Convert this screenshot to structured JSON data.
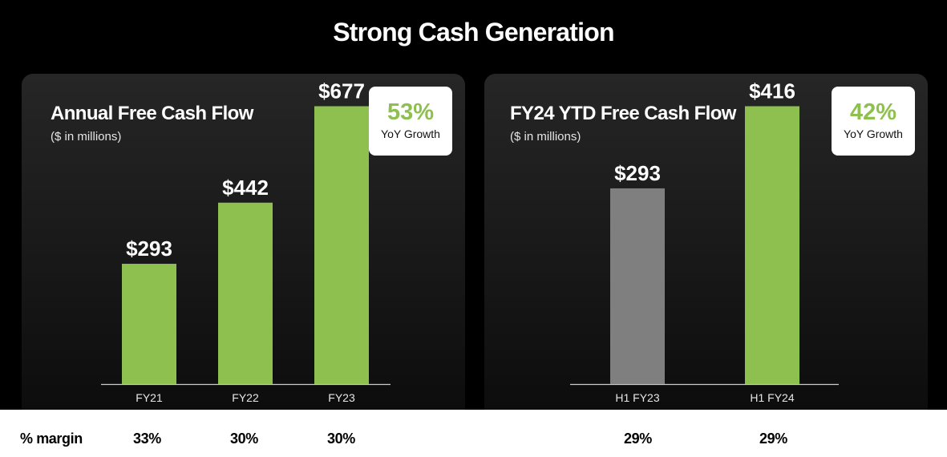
{
  "page_title": "Strong Cash Generation",
  "panels": [
    {
      "title": "Annual Free Cash Flow",
      "subtitle": "($ in millions)",
      "growth": {
        "value": "53%",
        "label": "YoY Growth"
      }
    },
    {
      "title": "FY24 YTD Free Cash Flow",
      "subtitle": "($ in millions)",
      "growth": {
        "value": "42%",
        "label": "YoY Growth"
      }
    }
  ],
  "margin": {
    "label": "% margin",
    "values": [
      "33%",
      "30%",
      "30%",
      "29%",
      "29%"
    ]
  },
  "colors": {
    "green": "#8dc04f",
    "gray": "#7f7f7f",
    "axis": "#cccccc"
  },
  "chart_data": [
    {
      "type": "bar",
      "title": "Annual Free Cash Flow",
      "subtitle": "($ in millions)",
      "categories": [
        "FY21",
        "FY22",
        "FY23"
      ],
      "values": [
        293,
        442,
        677
      ],
      "value_labels": [
        "$293",
        "$442",
        "$677"
      ],
      "bar_colors": [
        "#8dc04f",
        "#8dc04f",
        "#8dc04f"
      ],
      "ylim": [
        0,
        760
      ],
      "grid": false
    },
    {
      "type": "bar",
      "title": "FY24 YTD Free Cash Flow",
      "subtitle": "($ in millions)",
      "categories": [
        "H1 FY23",
        "H1 FY24"
      ],
      "values": [
        293,
        416
      ],
      "value_labels": [
        "$293",
        "$416"
      ],
      "bar_colors": [
        "#7f7f7f",
        "#8dc04f"
      ],
      "ylim": [
        0,
        467
      ],
      "grid": false
    }
  ]
}
